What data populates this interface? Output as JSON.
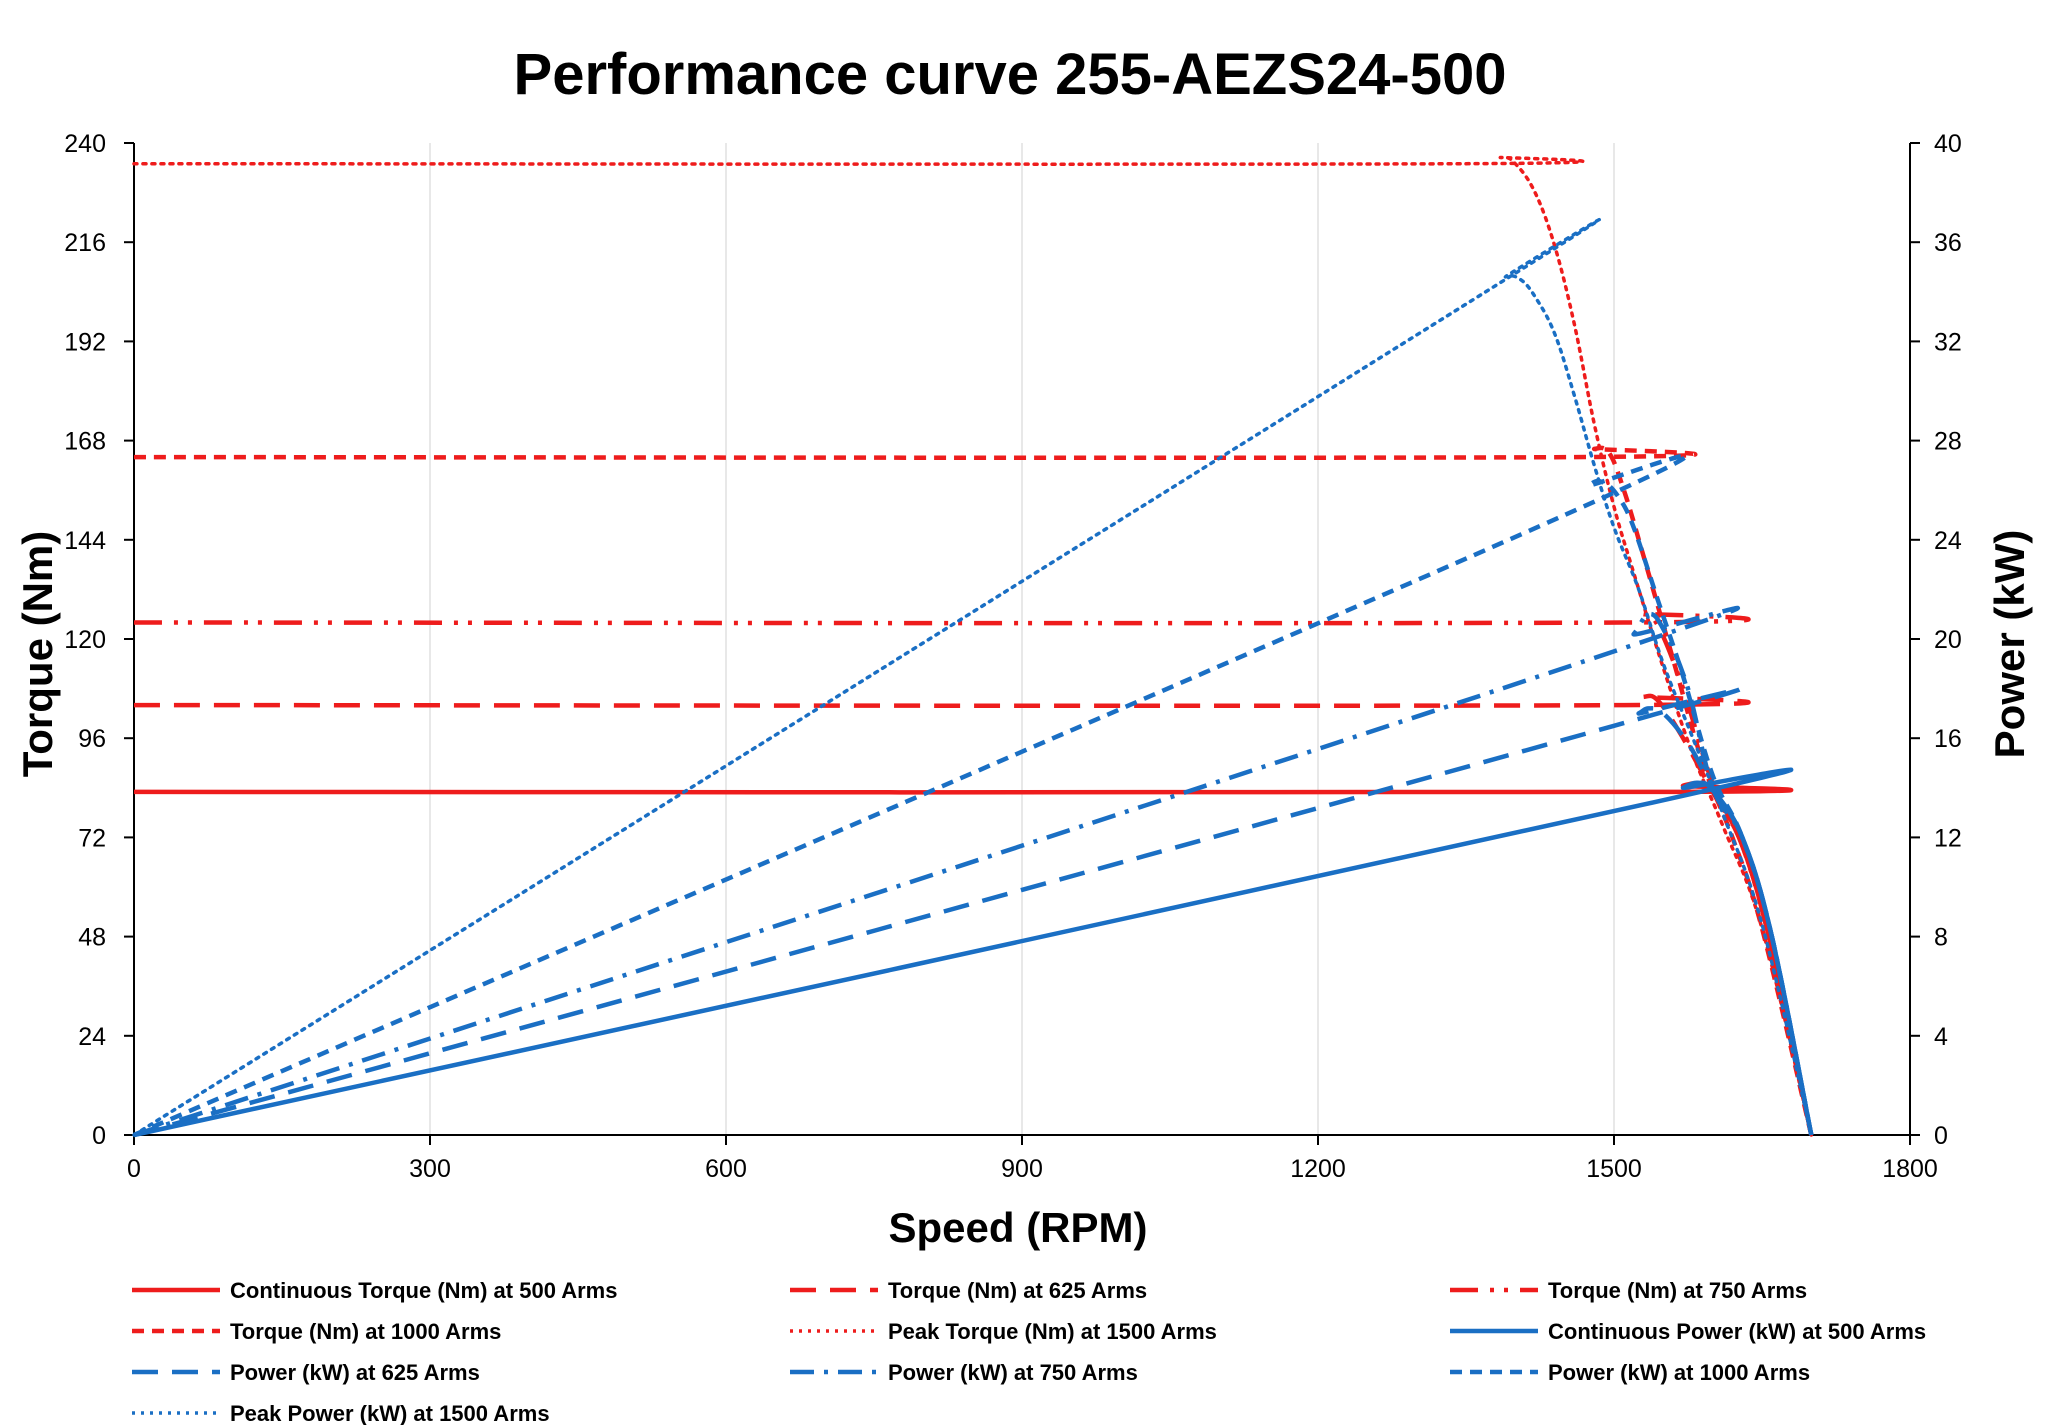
{
  "chart_data": {
    "type": "line",
    "title": "Performance curve 255-AEZS24-500",
    "xlabel": "Speed (RPM)",
    "ylabel": "Torque (Nm)",
    "y2label": "Power (kW)",
    "xlim": [
      0,
      1800
    ],
    "ylim": [
      0,
      240
    ],
    "y2lim": [
      0,
      40
    ],
    "xticks": [
      0,
      300,
      600,
      900,
      1200,
      1500,
      1800
    ],
    "yticks": [
      0,
      24,
      48,
      72,
      96,
      120,
      144,
      168,
      192,
      216,
      240
    ],
    "y2ticks": [
      0,
      4,
      8,
      12,
      16,
      20,
      24,
      28,
      32,
      36,
      40
    ],
    "grid": "vertical",
    "legend_position": "bottom",
    "series": [
      {
        "name": "Continuous Torque (Nm) at 500 Arms",
        "axis": "left",
        "color": "#ee1c1c",
        "dash": "solid",
        "points": [
          [
            0,
            83
          ],
          [
            1550,
            83
          ],
          [
            1570,
            84.5
          ],
          [
            1585,
            85
          ],
          [
            1600,
            83
          ],
          [
            1630,
            70
          ],
          [
            1660,
            45
          ],
          [
            1700,
            0
          ]
        ]
      },
      {
        "name": "Torque (Nm) at 625 Arms",
        "axis": "left",
        "color": "#ee1c1c",
        "dash": "longdash",
        "points": [
          [
            0,
            104
          ],
          [
            1510,
            104
          ],
          [
            1530,
            106
          ],
          [
            1545,
            105
          ],
          [
            1570,
            96
          ],
          [
            1600,
            83
          ],
          [
            1630,
            70
          ],
          [
            1660,
            45
          ],
          [
            1700,
            0
          ]
        ]
      },
      {
        "name": "Torque (Nm) at 750 Arms",
        "axis": "left",
        "color": "#ee1c1c",
        "dash": "dashdotdot",
        "points": [
          [
            0,
            124
          ],
          [
            1510,
            124
          ],
          [
            1530,
            126
          ],
          [
            1545,
            123
          ],
          [
            1570,
            108
          ],
          [
            1600,
            85
          ],
          [
            1630,
            70
          ],
          [
            1660,
            45
          ],
          [
            1700,
            0
          ]
        ]
      },
      {
        "name": "Torque (Nm) at 1000 Arms",
        "axis": "left",
        "color": "#ee1c1c",
        "dash": "shortdash",
        "points": [
          [
            0,
            164
          ],
          [
            1460,
            164
          ],
          [
            1480,
            166
          ],
          [
            1495,
            165
          ],
          [
            1510,
            156
          ],
          [
            1530,
            140
          ],
          [
            1560,
            115
          ],
          [
            1590,
            90
          ],
          [
            1620,
            72
          ],
          [
            1650,
            50
          ],
          [
            1700,
            0
          ]
        ]
      },
      {
        "name": "Peak Torque (Nm) at 1500 Arms",
        "axis": "left",
        "color": "#ee1c1c",
        "dash": "dot",
        "points": [
          [
            0,
            235
          ],
          [
            1350,
            235
          ],
          [
            1385,
            236.5
          ],
          [
            1400,
            235
          ],
          [
            1420,
            228
          ],
          [
            1440,
            215
          ],
          [
            1460,
            196
          ],
          [
            1480,
            172
          ],
          [
            1500,
            152
          ],
          [
            1520,
            136
          ],
          [
            1550,
            113
          ],
          [
            1580,
            92
          ],
          [
            1610,
            75
          ],
          [
            1650,
            50
          ],
          [
            1700,
            0
          ]
        ]
      },
      {
        "name": "Continuous Power (kW) at 500 Arms",
        "axis": "right",
        "color": "#1a6fc4",
        "dash": "solid",
        "points": [
          [
            0,
            0
          ],
          [
            1550,
            13.5
          ],
          [
            1570,
            14.0
          ],
          [
            1585,
            14.2
          ],
          [
            1600,
            13.9
          ],
          [
            1630,
            12.0
          ],
          [
            1660,
            8.0
          ],
          [
            1700,
            0
          ]
        ]
      },
      {
        "name": "Power (kW) at 625 Arms",
        "axis": "right",
        "color": "#1a6fc4",
        "dash": "longdash",
        "points": [
          [
            0,
            0
          ],
          [
            1500,
            16.5
          ],
          [
            1525,
            17.0
          ],
          [
            1535,
            17.2
          ],
          [
            1550,
            17.0
          ],
          [
            1575,
            15.8
          ],
          [
            1600,
            14.0
          ],
          [
            1630,
            12.0
          ],
          [
            1660,
            8.0
          ],
          [
            1700,
            0
          ]
        ]
      },
      {
        "name": "Power (kW) at 750 Arms",
        "axis": "right",
        "color": "#1a6fc4",
        "dash": "dashdot",
        "points": [
          [
            0,
            0
          ],
          [
            1500,
            19.5
          ],
          [
            1520,
            20.2
          ],
          [
            1535,
            21.0
          ],
          [
            1550,
            20.4
          ],
          [
            1575,
            18.0
          ],
          [
            1600,
            14.0
          ],
          [
            1630,
            12.0
          ],
          [
            1660,
            8.0
          ],
          [
            1700,
            0
          ]
        ]
      },
      {
        "name": "Power (kW) at 1000 Arms",
        "axis": "right",
        "color": "#1a6fc4",
        "dash": "shortdash",
        "points": [
          [
            0,
            0
          ],
          [
            1450,
            25.0
          ],
          [
            1475,
            26.2
          ],
          [
            1490,
            26.3
          ],
          [
            1505,
            25.7
          ],
          [
            1520,
            24.5
          ],
          [
            1545,
            21.5
          ],
          [
            1570,
            18.5
          ],
          [
            1600,
            14.5
          ],
          [
            1630,
            12.0
          ],
          [
            1660,
            8.0
          ],
          [
            1700,
            0
          ]
        ]
      },
      {
        "name": "Peak Power (kW) at 1500 Arms",
        "axis": "right",
        "color": "#1a6fc4",
        "dash": "dot",
        "points": [
          [
            0,
            0
          ],
          [
            1370,
            34.0
          ],
          [
            1390,
            34.6
          ],
          [
            1405,
            34.5
          ],
          [
            1420,
            33.8
          ],
          [
            1440,
            32.3
          ],
          [
            1460,
            29.8
          ],
          [
            1480,
            27.0
          ],
          [
            1500,
            24.5
          ],
          [
            1525,
            22.0
          ],
          [
            1550,
            19.0
          ],
          [
            1580,
            16.0
          ],
          [
            1610,
            13.0
          ],
          [
            1650,
            8.5
          ],
          [
            1700,
            0
          ]
        ]
      }
    ]
  }
}
